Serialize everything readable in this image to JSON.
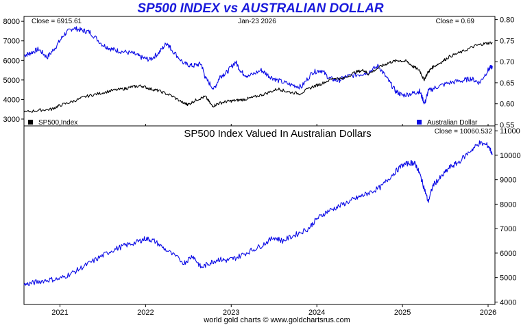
{
  "title": "SP500 INDEX vs AUSTRALIAN DOLLAR",
  "footer": "world gold charts © www.goldchartsrus.com",
  "colors": {
    "title": "#1a1adb",
    "sp500": "#000000",
    "aud": "#0a0ae6",
    "sp500_in_aud": "#0a0ae6"
  },
  "chart_data": [
    {
      "type": "line",
      "panel": "top",
      "title": "SP500 Index vs Australian Dollar",
      "header": {
        "left": "Close = 6915.61",
        "center": "Jan-23  2026",
        "right": "Close = 0.69"
      },
      "x_ticks": [
        "2021",
        "2022",
        "2023",
        "2024",
        "2025",
        "2026"
      ],
      "x_range": [
        2020.58,
        2026.08
      ],
      "left_axis": {
        "ylim": [
          2650,
          8250
        ],
        "ticks": [
          3000,
          4000,
          5000,
          6000,
          7000,
          8000
        ],
        "tick_labels": [
          "3000",
          "4000",
          "5000",
          "6000",
          "7000",
          "8000"
        ]
      },
      "right_axis": {
        "ylim": [
          0.5475,
          0.8075
        ],
        "ticks": [
          0.55,
          0.6,
          0.65,
          0.7,
          0.75,
          0.8
        ],
        "tick_labels": [
          "0.55",
          "0.60",
          "0.65",
          "0.70",
          "0.75",
          "0.80"
        ]
      },
      "series": [
        {
          "name": "SP500 Index",
          "axis": "left",
          "color": "#000000",
          "x": [
            2020.58,
            2020.75,
            2020.9,
            2021.0,
            2021.15,
            2021.3,
            2021.45,
            2021.6,
            2021.75,
            2021.85,
            2021.95,
            2022.05,
            2022.15,
            2022.3,
            2022.45,
            2022.5,
            2022.6,
            2022.7,
            2022.78,
            2022.85,
            2022.95,
            2023.05,
            2023.15,
            2023.25,
            2023.4,
            2023.55,
            2023.65,
            2023.8,
            2023.95,
            2024.05,
            2024.2,
            2024.3,
            2024.45,
            2024.55,
            2024.6,
            2024.75,
            2024.85,
            2024.95,
            2025.05,
            2025.12,
            2025.2,
            2025.25,
            2025.3,
            2025.35,
            2025.45,
            2025.55,
            2025.7,
            2025.85,
            2025.95,
            2026.05
          ],
          "values": [
            3350,
            3450,
            3500,
            3700,
            3900,
            4150,
            4300,
            4450,
            4550,
            4650,
            4700,
            4550,
            4450,
            4200,
            3800,
            3750,
            4000,
            4150,
            3650,
            3800,
            3900,
            3950,
            4000,
            4100,
            4300,
            4550,
            4400,
            4300,
            4650,
            4800,
            5100,
            5050,
            5400,
            5500,
            5300,
            5700,
            5900,
            6000,
            5950,
            5700,
            5500,
            5000,
            5400,
            5650,
            5900,
            6200,
            6450,
            6750,
            6850,
            6915.61
          ]
        },
        {
          "name": "Australian Dollar",
          "axis": "right",
          "color": "#0a0ae6",
          "x": [
            2020.58,
            2020.65,
            2020.75,
            2020.85,
            2020.95,
            2021.05,
            2021.15,
            2021.25,
            2021.35,
            2021.5,
            2021.6,
            2021.7,
            2021.85,
            2021.95,
            2022.05,
            2022.15,
            2022.25,
            2022.3,
            2022.45,
            2022.55,
            2022.65,
            2022.7,
            2022.8,
            2022.87,
            2022.95,
            2023.05,
            2023.12,
            2023.2,
            2023.35,
            2023.45,
            2023.55,
            2023.7,
            2023.82,
            2023.95,
            2024.05,
            2024.15,
            2024.25,
            2024.35,
            2024.5,
            2024.6,
            2024.72,
            2024.82,
            2024.92,
            2025.0,
            2025.12,
            2025.2,
            2025.26,
            2025.3,
            2025.4,
            2025.55,
            2025.7,
            2025.8,
            2025.9,
            2026.0,
            2026.05
          ],
          "values": [
            0.715,
            0.72,
            0.73,
            0.71,
            0.735,
            0.765,
            0.78,
            0.775,
            0.77,
            0.74,
            0.73,
            0.725,
            0.72,
            0.71,
            0.705,
            0.72,
            0.745,
            0.73,
            0.695,
            0.69,
            0.695,
            0.66,
            0.635,
            0.665,
            0.675,
            0.7,
            0.675,
            0.665,
            0.68,
            0.665,
            0.655,
            0.645,
            0.64,
            0.675,
            0.68,
            0.66,
            0.655,
            0.665,
            0.67,
            0.675,
            0.69,
            0.66,
            0.63,
            0.62,
            0.625,
            0.63,
            0.6,
            0.63,
            0.64,
            0.65,
            0.655,
            0.66,
            0.65,
            0.68,
            0.69
          ]
        }
      ],
      "legend": [
        {
          "label": "SP500 Index",
          "color": "#000000",
          "position": "bottom-left"
        },
        {
          "label": "Australian Dollar",
          "color": "#0a0ae6",
          "position": "bottom-right"
        }
      ]
    },
    {
      "type": "line",
      "panel": "bottom",
      "title": "SP500 Index Valued In Australian Dollars",
      "header": {
        "right": "Close = 10060.532"
      },
      "x_ticks": [
        "2021",
        "2022",
        "2023",
        "2024",
        "2025",
        "2026"
      ],
      "x_range": [
        2020.58,
        2026.08
      ],
      "right_axis": {
        "ylim": [
          3900,
          11200
        ],
        "ticks": [
          4000,
          5000,
          6000,
          7000,
          8000,
          9000,
          10000,
          11000
        ],
        "tick_labels": [
          "4000",
          "5000",
          "6000",
          "7000",
          "8000",
          "9000",
          "10000",
          "11000"
        ]
      },
      "series": [
        {
          "name": "SP500 Index Valued In Australian Dollars",
          "axis": "right",
          "color": "#0a0ae6",
          "x": [
            2020.58,
            2020.7,
            2020.85,
            2021.0,
            2021.15,
            2021.3,
            2021.45,
            2021.6,
            2021.75,
            2021.9,
            2022.0,
            2022.1,
            2022.25,
            2022.45,
            2022.55,
            2022.65,
            2022.75,
            2022.85,
            2022.95,
            2023.05,
            2023.2,
            2023.35,
            2023.5,
            2023.6,
            2023.75,
            2023.9,
            2024.0,
            2024.12,
            2024.25,
            2024.4,
            2024.5,
            2024.6,
            2024.75,
            2024.88,
            2025.0,
            2025.1,
            2025.15,
            2025.2,
            2025.25,
            2025.3,
            2025.36,
            2025.45,
            2025.55,
            2025.65,
            2025.8,
            2025.9,
            2026.0,
            2026.05
          ],
          "values": [
            4700,
            4800,
            4900,
            4950,
            5200,
            5500,
            5800,
            6100,
            6300,
            6450,
            6600,
            6500,
            6100,
            5600,
            5900,
            5400,
            5600,
            5750,
            5700,
            5800,
            6050,
            6300,
            6650,
            6500,
            6750,
            7000,
            7400,
            7700,
            7900,
            8150,
            8300,
            8450,
            8700,
            9200,
            9600,
            9700,
            9650,
            9250,
            8700,
            8100,
            8800,
            9100,
            9500,
            9700,
            10200,
            10500,
            10400,
            10060.532
          ]
        }
      ]
    }
  ]
}
